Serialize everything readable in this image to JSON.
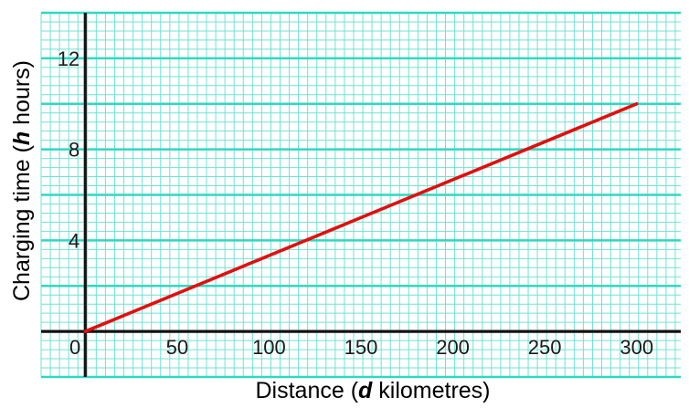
{
  "chart_data": {
    "type": "line",
    "title": "",
    "xlabel": {
      "prefix": "Distance (",
      "variable": "d",
      "suffix": " kilometres)"
    },
    "ylabel": {
      "prefix": "Charging time (",
      "variable": "h",
      "suffix": " hours)"
    },
    "xlim": [
      -24,
      324
    ],
    "ylim": [
      -2,
      14
    ],
    "x_ticks": [
      50,
      100,
      150,
      200,
      250,
      300
    ],
    "y_ticks": [
      4,
      8,
      12
    ],
    "origin_label": "0",
    "grid": true,
    "legend": "none",
    "series": [
      {
        "x": [
          0,
          300
        ],
        "y": [
          0,
          10
        ]
      }
    ],
    "colors": {
      "minor_grid": "#6fe3d2",
      "major_grid": "#2fd9c0",
      "axis": "#111111",
      "line": "#e01010"
    }
  }
}
